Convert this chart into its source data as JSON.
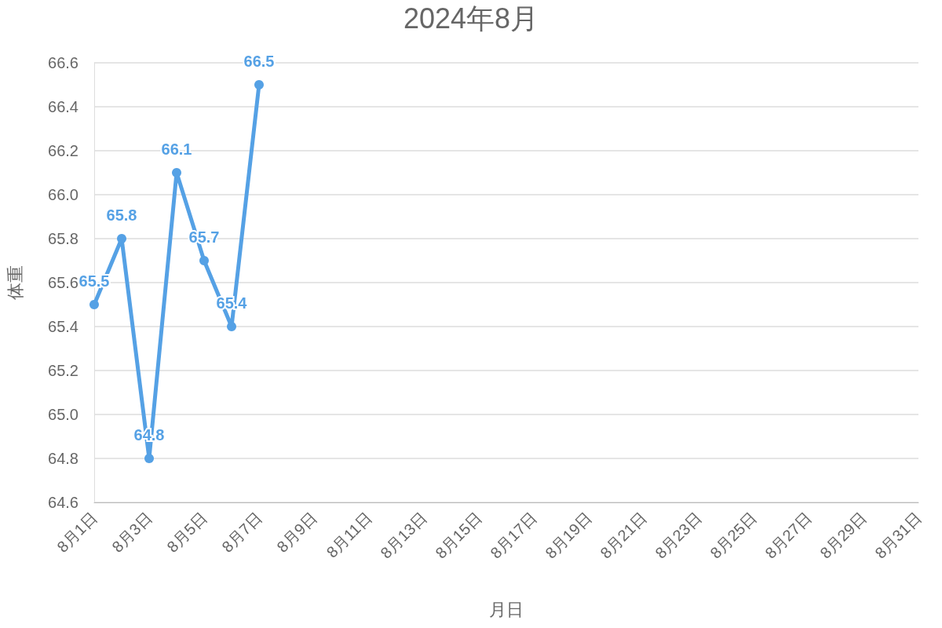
{
  "chart_data": {
    "type": "line",
    "title": "2024年8月",
    "xlabel": "月日",
    "ylabel": "体重",
    "categories": [
      "8月1日",
      null,
      "8月3日",
      null,
      "8月5日",
      null,
      "8月7日",
      null,
      "8月9日",
      null,
      "8月11日",
      null,
      "8月13日",
      null,
      "8月15日",
      null,
      "8月17日",
      null,
      "8月19日",
      null,
      "8月21日",
      null,
      "8月23日",
      null,
      "8月25日",
      null,
      "8月27日",
      null,
      "8月29日",
      null,
      "8月31日"
    ],
    "series": [
      {
        "color": "#55a1e5",
        "values": [
          65.5,
          65.8,
          64.8,
          66.1,
          65.7,
          65.4,
          66.5,
          null,
          null,
          null,
          null,
          null,
          null,
          null,
          null,
          null,
          null,
          null,
          null,
          null,
          null,
          null,
          null,
          null,
          null,
          null,
          null,
          null,
          null,
          null,
          null
        ]
      }
    ],
    "ylim": [
      64.6,
      66.6
    ],
    "yticks": [
      64.6,
      64.8,
      {
        "value": 65,
        "label": "65.0"
      },
      65.2,
      65.4,
      65.6,
      65.8,
      {
        "value": 66,
        "label": "66.0"
      },
      66.2,
      66.4,
      66.6
    ],
    "grid": "y",
    "marker": "circle",
    "line_style": "solid",
    "data_labels": true
  }
}
